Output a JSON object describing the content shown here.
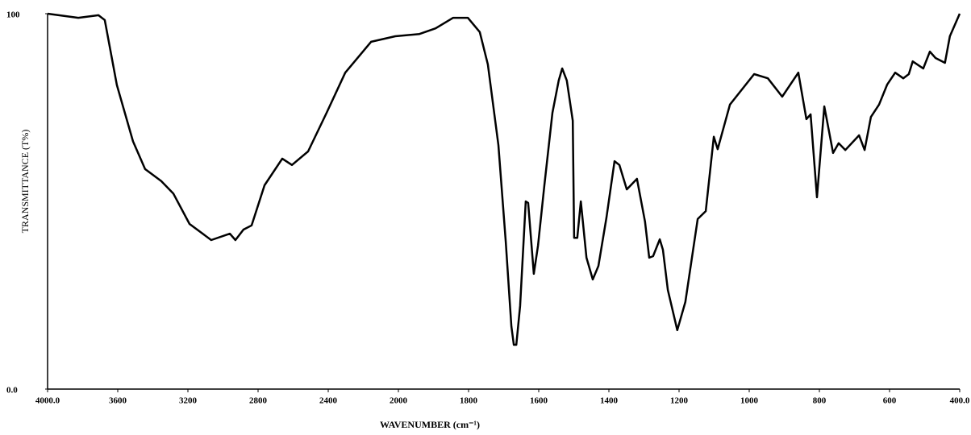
{
  "chart_data": {
    "type": "line",
    "x_label": "WAVENUMBER (cm⁻¹)",
    "y_label": "TRANSMITTANCE (T%)",
    "x": [
      4000,
      3825,
      3710,
      3674,
      3605,
      3513,
      3444,
      3352,
      3283,
      3191,
      3067,
      2961,
      2929,
      2883,
      2837,
      2763,
      2662,
      2607,
      2515,
      2409,
      2303,
      2156,
      2018,
      1940,
      1894,
      1844,
      1802,
      1768,
      1745,
      1715,
      1694,
      1678,
      1671,
      1664,
      1653,
      1637,
      1630,
      1614,
      1602,
      1584,
      1561,
      1543,
      1533,
      1520,
      1503,
      1499,
      1490,
      1480,
      1464,
      1446,
      1430,
      1407,
      1384,
      1370,
      1349,
      1320,
      1297,
      1285,
      1274,
      1255,
      1246,
      1232,
      1205,
      1182,
      1147,
      1124,
      1101,
      1090,
      1055,
      986,
      947,
      906,
      860,
      837,
      825,
      807,
      786,
      761,
      745,
      726,
      687,
      671,
      653,
      630,
      607,
      584,
      561,
      545,
      534,
      504,
      485,
      469,
      442,
      428,
      400
    ],
    "series": [
      {
        "color": "#000000",
        "values": [
          100,
          98.9,
          99.6,
          98.3,
          81,
          66,
          58.6,
          55.4,
          52.1,
          44,
          39.7,
          41.4,
          39.7,
          42.5,
          43.6,
          54.3,
          61.4,
          59.7,
          63.3,
          73.6,
          84.3,
          92.5,
          94,
          94.6,
          96.1,
          98.9,
          98.9,
          95.1,
          86.5,
          65,
          39.3,
          16.7,
          11.8,
          11.8,
          22.1,
          50,
          49.6,
          30.7,
          38.2,
          54.3,
          73.6,
          82.2,
          85.4,
          82.2,
          71.5,
          40.3,
          40.3,
          50,
          35,
          29.2,
          32.8,
          45.7,
          60.7,
          59.7,
          53.2,
          56,
          44.6,
          35,
          35.4,
          39.9,
          37.1,
          26.4,
          15.7,
          23.2,
          45.3,
          47.4,
          67.2,
          63.9,
          75.8,
          83.9,
          82.8,
          77.9,
          84.3,
          71.9,
          73.2,
          51.1,
          75.3,
          62.9,
          65.5,
          63.7,
          67.6,
          63.7,
          72.5,
          75.8,
          81.1,
          84.3,
          82.8,
          83.9,
          87.3,
          85.4,
          89.9,
          88.2,
          86.9,
          94,
          100
        ]
      }
    ],
    "xlim": [
      4000,
      400
    ],
    "xticks": [
      {
        "value": 4000,
        "label": "4000.0"
      },
      3600,
      3200,
      2800,
      2400,
      2000,
      1800,
      1600,
      1400,
      1200,
      1000,
      800,
      600,
      {
        "value": 400,
        "label": "400.0"
      }
    ],
    "ylim": [
      0,
      100
    ],
    "yticks": [
      100,
      {
        "value": 0,
        "label": "0.0"
      }
    ]
  }
}
